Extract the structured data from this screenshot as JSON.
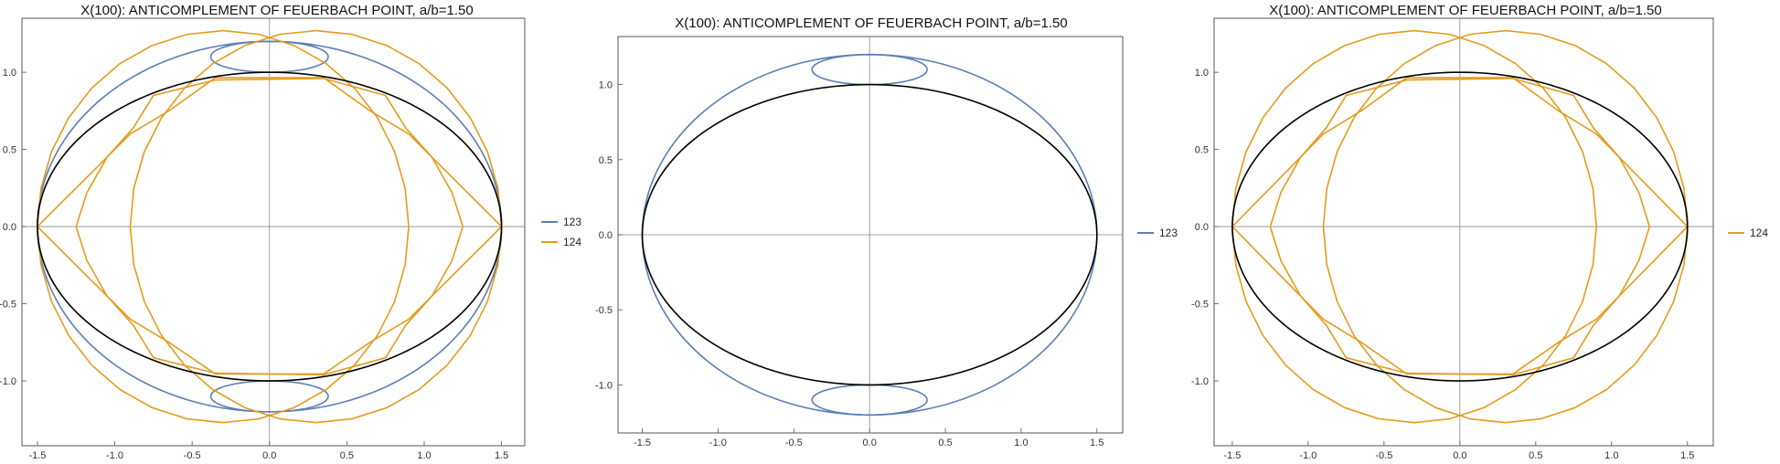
{
  "colors": {
    "series_123": "#5a7fb5",
    "series_124": "#e39c1d",
    "ellipse": "#000000",
    "axes": "#888888",
    "frame": "#555555"
  },
  "chart_data": [
    {
      "type": "line",
      "title": "X(100): ANTICOMPLEMENT OF FEUERBACH POINT, a/b=1.50",
      "xlim": [
        -1.6,
        1.65
      ],
      "ylim": [
        -1.42,
        1.35
      ],
      "xticks": [
        "-1.5",
        "-1.0",
        "-0.5",
        "0.0",
        "0.5",
        "1.0",
        "1.5"
      ],
      "yticks": [
        "-1.0",
        "-0.5",
        "0.0",
        "0.5",
        "1.0"
      ],
      "grid": false,
      "legend": "right",
      "reference_ellipse": {
        "a": 1.5,
        "b": 1.0
      },
      "series": [
        {
          "name": "123",
          "color": "#5a7fb5"
        },
        {
          "name": "124",
          "color": "#e39c1d"
        }
      ]
    },
    {
      "type": "line",
      "title": "X(100): ANTICOMPLEMENT OF FEUERBACH POINT, a/b=1.50",
      "xlim": [
        -1.66,
        1.67
      ],
      "ylim": [
        -1.32,
        1.32
      ],
      "xticks": [
        "-1.5",
        "-1.0",
        "-0.5",
        "0.0",
        "0.5",
        "1.0",
        "1.5"
      ],
      "yticks": [
        "-1.0",
        "-0.5",
        "0.0",
        "0.5",
        "1.0"
      ],
      "grid": false,
      "legend": "right",
      "reference_ellipse": {
        "a": 1.5,
        "b": 1.0
      },
      "series": [
        {
          "name": "123",
          "color": "#5a7fb5"
        }
      ]
    },
    {
      "type": "line",
      "title": "X(100): ANTICOMPLEMENT OF FEUERBACH POINT, a/b=1.50",
      "xlim": [
        -1.62,
        1.67
      ],
      "ylim": [
        -1.42,
        1.35
      ],
      "xticks": [
        "-1.5",
        "-1.0",
        "-0.5",
        "0.0",
        "0.5",
        "1.0",
        "1.5"
      ],
      "yticks": [
        "-1.0",
        "-0.5",
        "0.0",
        "0.5",
        "1.0"
      ],
      "grid": false,
      "legend": "right",
      "reference_ellipse": {
        "a": 1.5,
        "b": 1.0
      },
      "series": [
        {
          "name": "124",
          "color": "#e39c1d"
        }
      ]
    }
  ]
}
